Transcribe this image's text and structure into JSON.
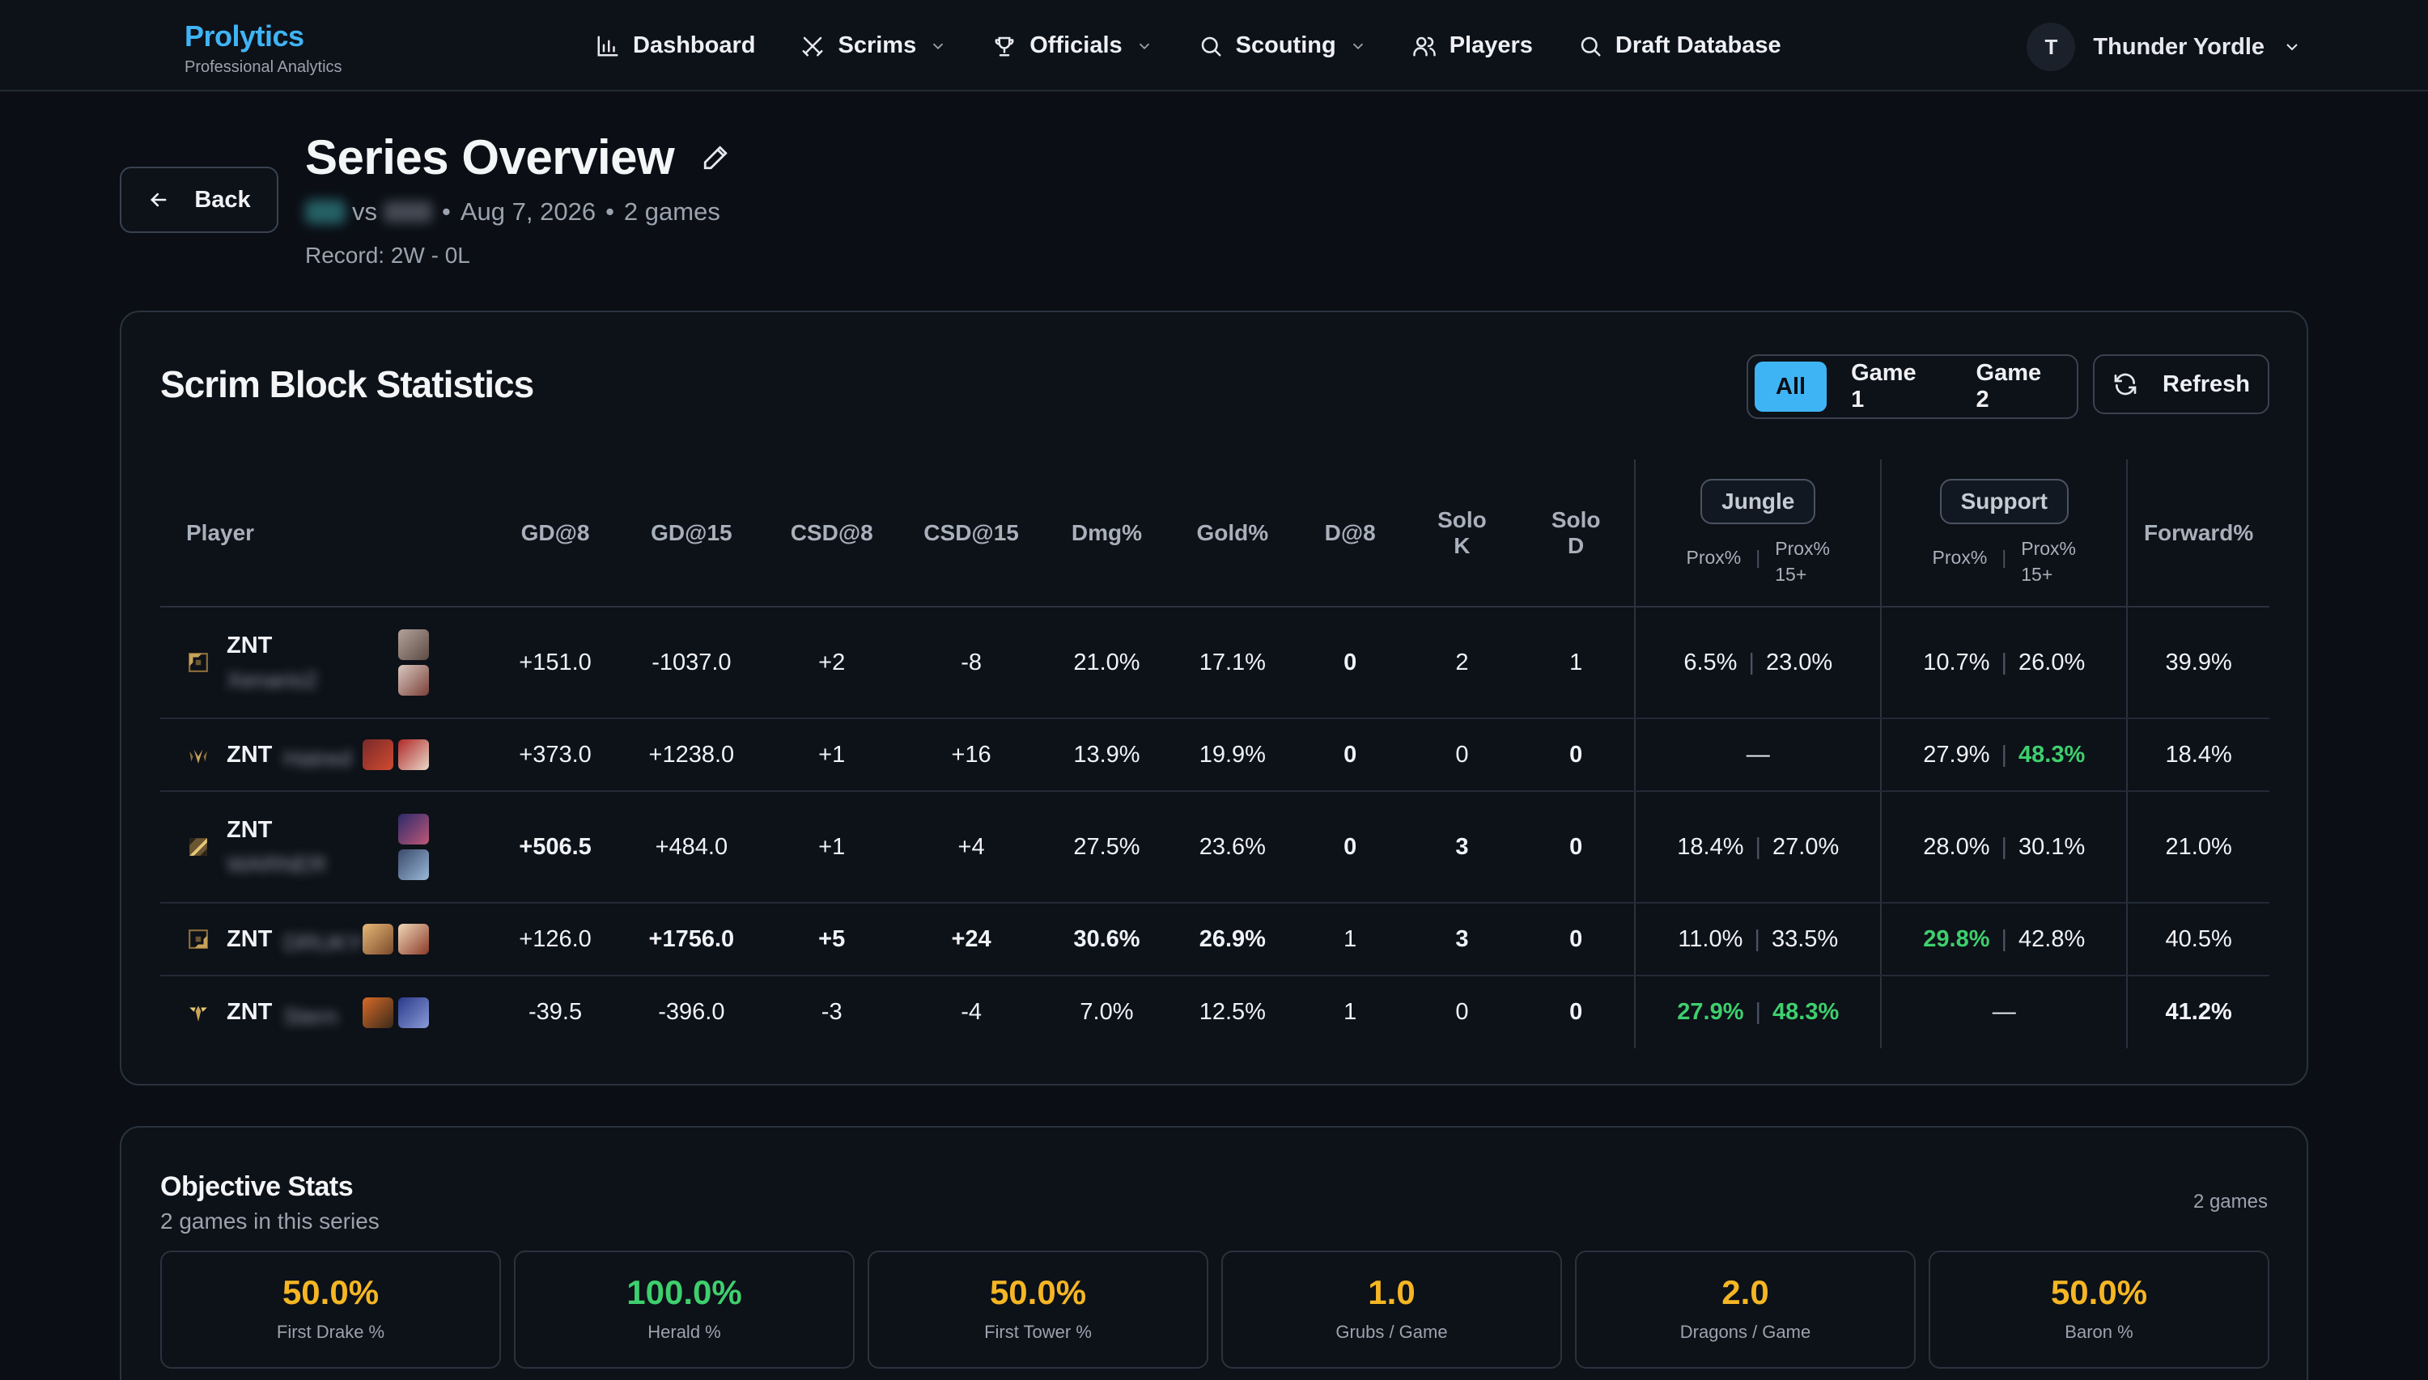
{
  "brand": {
    "name": "Prolytics",
    "subtitle": "Professional Analytics"
  },
  "nav": {
    "dashboard": "Dashboard",
    "scrims": "Scrims",
    "officials": "Officials",
    "scouting": "Scouting",
    "players": "Players",
    "draft_database": "Draft Database"
  },
  "user": {
    "initial": "T",
    "name": "Thunder Yordle"
  },
  "header": {
    "back_label": "Back",
    "title": "Series Overview",
    "vs": "vs",
    "date": "Aug 7, 2026",
    "games": "2 games",
    "record": "Record: 2W - 0L"
  },
  "stats": {
    "title": "Scrim Block Statistics",
    "filters": [
      "All",
      "Game 1",
      "Game 2"
    ],
    "active_filter": "All",
    "refresh_label": "Refresh",
    "columns": {
      "player": "Player",
      "gd8": "GD@8",
      "gd15": "GD@15",
      "csd8": "CSD@8",
      "csd15": "CSD@15",
      "dmg": "Dmg%",
      "gold": "Gold%",
      "d8": "D@8",
      "solo_k_1": "Solo",
      "solo_k_2": "K",
      "solo_d_1": "Solo",
      "solo_d_2": "D",
      "jungle": "Jungle",
      "support": "Support",
      "prox": "Prox%",
      "prox15_1": "Prox%",
      "prox15_2": "15+",
      "forward": "Forward%"
    },
    "rows": [
      {
        "role": "top",
        "team": "ZNT",
        "name": "Xenario2",
        "gd8": "+151.0",
        "gd15": "-1037.0",
        "csd8": "+2",
        "csd15": "-8",
        "dmg": "21.0%",
        "gold": "17.1%",
        "d8": "0",
        "solo_k": "2",
        "solo_d": "1",
        "j_prox": "6.5%",
        "j_prox15": "23.0%",
        "s_prox": "10.7%",
        "s_prox15": "26.0%",
        "forward": "39.9%"
      },
      {
        "role": "jungle",
        "team": "ZNT",
        "name": "Hatred",
        "gd8": "+373.0",
        "gd15": "+1238.0",
        "csd8": "+1",
        "csd15": "+16",
        "dmg": "13.9%",
        "gold": "19.9%",
        "d8": "0",
        "solo_k": "0",
        "solo_d": "0",
        "j_dash": "—",
        "s_prox": "27.9%",
        "s_prox15": "48.3%",
        "forward": "18.4%"
      },
      {
        "role": "mid",
        "team": "ZNT",
        "name": "WARNER",
        "gd8": "+506.5",
        "gd15": "+484.0",
        "csd8": "+1",
        "csd15": "+4",
        "dmg": "27.5%",
        "gold": "23.6%",
        "d8": "0",
        "solo_k": "3",
        "solo_d": "0",
        "j_prox": "18.4%",
        "j_prox15": "27.0%",
        "s_prox": "28.0%",
        "s_prox15": "30.1%",
        "forward": "21.0%"
      },
      {
        "role": "bot",
        "team": "ZNT",
        "name": "DRUKY",
        "gd8": "+126.0",
        "gd15": "+1756.0",
        "csd8": "+5",
        "csd15": "+24",
        "dmg": "30.6%",
        "gold": "26.9%",
        "d8": "1",
        "solo_k": "3",
        "solo_d": "0",
        "j_prox": "11.0%",
        "j_prox15": "33.5%",
        "s_prox": "29.8%",
        "s_prox15": "42.8%",
        "forward": "40.5%"
      },
      {
        "role": "support",
        "team": "ZNT",
        "name": "Stern",
        "gd8": "-39.5",
        "gd15": "-396.0",
        "csd8": "-3",
        "csd15": "-4",
        "dmg": "7.0%",
        "gold": "12.5%",
        "d8": "1",
        "solo_k": "0",
        "solo_d": "0",
        "j_prox": "27.9%",
        "j_prox15": "48.3%",
        "s_dash": "—",
        "forward": "41.2%"
      }
    ]
  },
  "objectives": {
    "title": "Objective Stats",
    "subtitle": "2 games in this series",
    "games_badge": "2 games",
    "items": [
      {
        "value": "50.0%",
        "label": "First Drake %",
        "color": "#f5b624"
      },
      {
        "value": "100.0%",
        "label": "Herald %",
        "color": "#3ecf6e"
      },
      {
        "value": "50.0%",
        "label": "First Tower %",
        "color": "#f5b624"
      },
      {
        "value": "1.0",
        "label": "Grubs / Game",
        "color": "#f5b624"
      },
      {
        "value": "2.0",
        "label": "Dragons / Game",
        "color": "#f5b624"
      },
      {
        "value": "50.0%",
        "label": "Baron %",
        "color": "#f5b624"
      }
    ]
  },
  "colors": {
    "accent": "#3fb4f5",
    "positive": "#3ecf6e",
    "negative": "#ef4444",
    "amber": "#f5b624"
  }
}
